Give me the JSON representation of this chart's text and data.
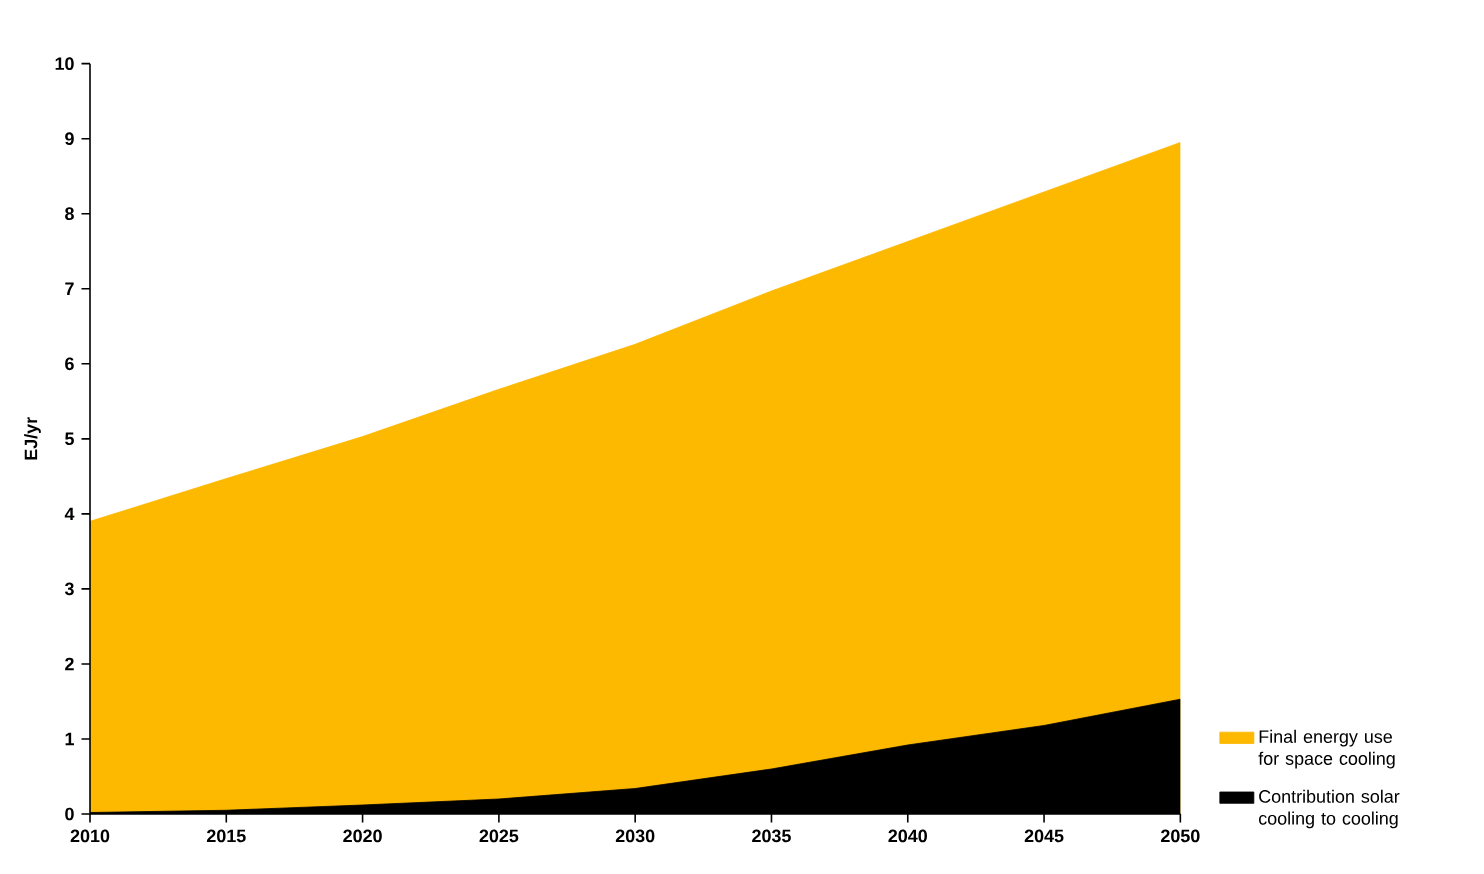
{
  "chart_data": {
    "type": "area",
    "ylabel": "EJ/yr",
    "x": [
      2010,
      2015,
      2020,
      2025,
      2030,
      2035,
      2040,
      2045,
      2050
    ],
    "series": [
      {
        "name": "Final energy use for space cooling",
        "color": "#fdb800",
        "values": [
          3.9,
          4.47,
          5.03,
          5.66,
          6.26,
          6.97,
          7.63,
          8.29,
          8.95
        ]
      },
      {
        "name": "Contribution solar cooling to cooling",
        "color": "#000000",
        "values": [
          0.02,
          0.05,
          0.12,
          0.2,
          0.34,
          0.6,
          0.92,
          1.18,
          1.53
        ]
      }
    ],
    "xlim": [
      2010,
      2050
    ],
    "xticks": [
      2010,
      2015,
      2020,
      2025,
      2030,
      2035,
      2040,
      2045,
      2050
    ],
    "ylim": [
      0,
      10
    ],
    "yticks": [
      0,
      1,
      2,
      3,
      4,
      5,
      6,
      7,
      8,
      9,
      10
    ],
    "grid": false,
    "legend": "right"
  }
}
